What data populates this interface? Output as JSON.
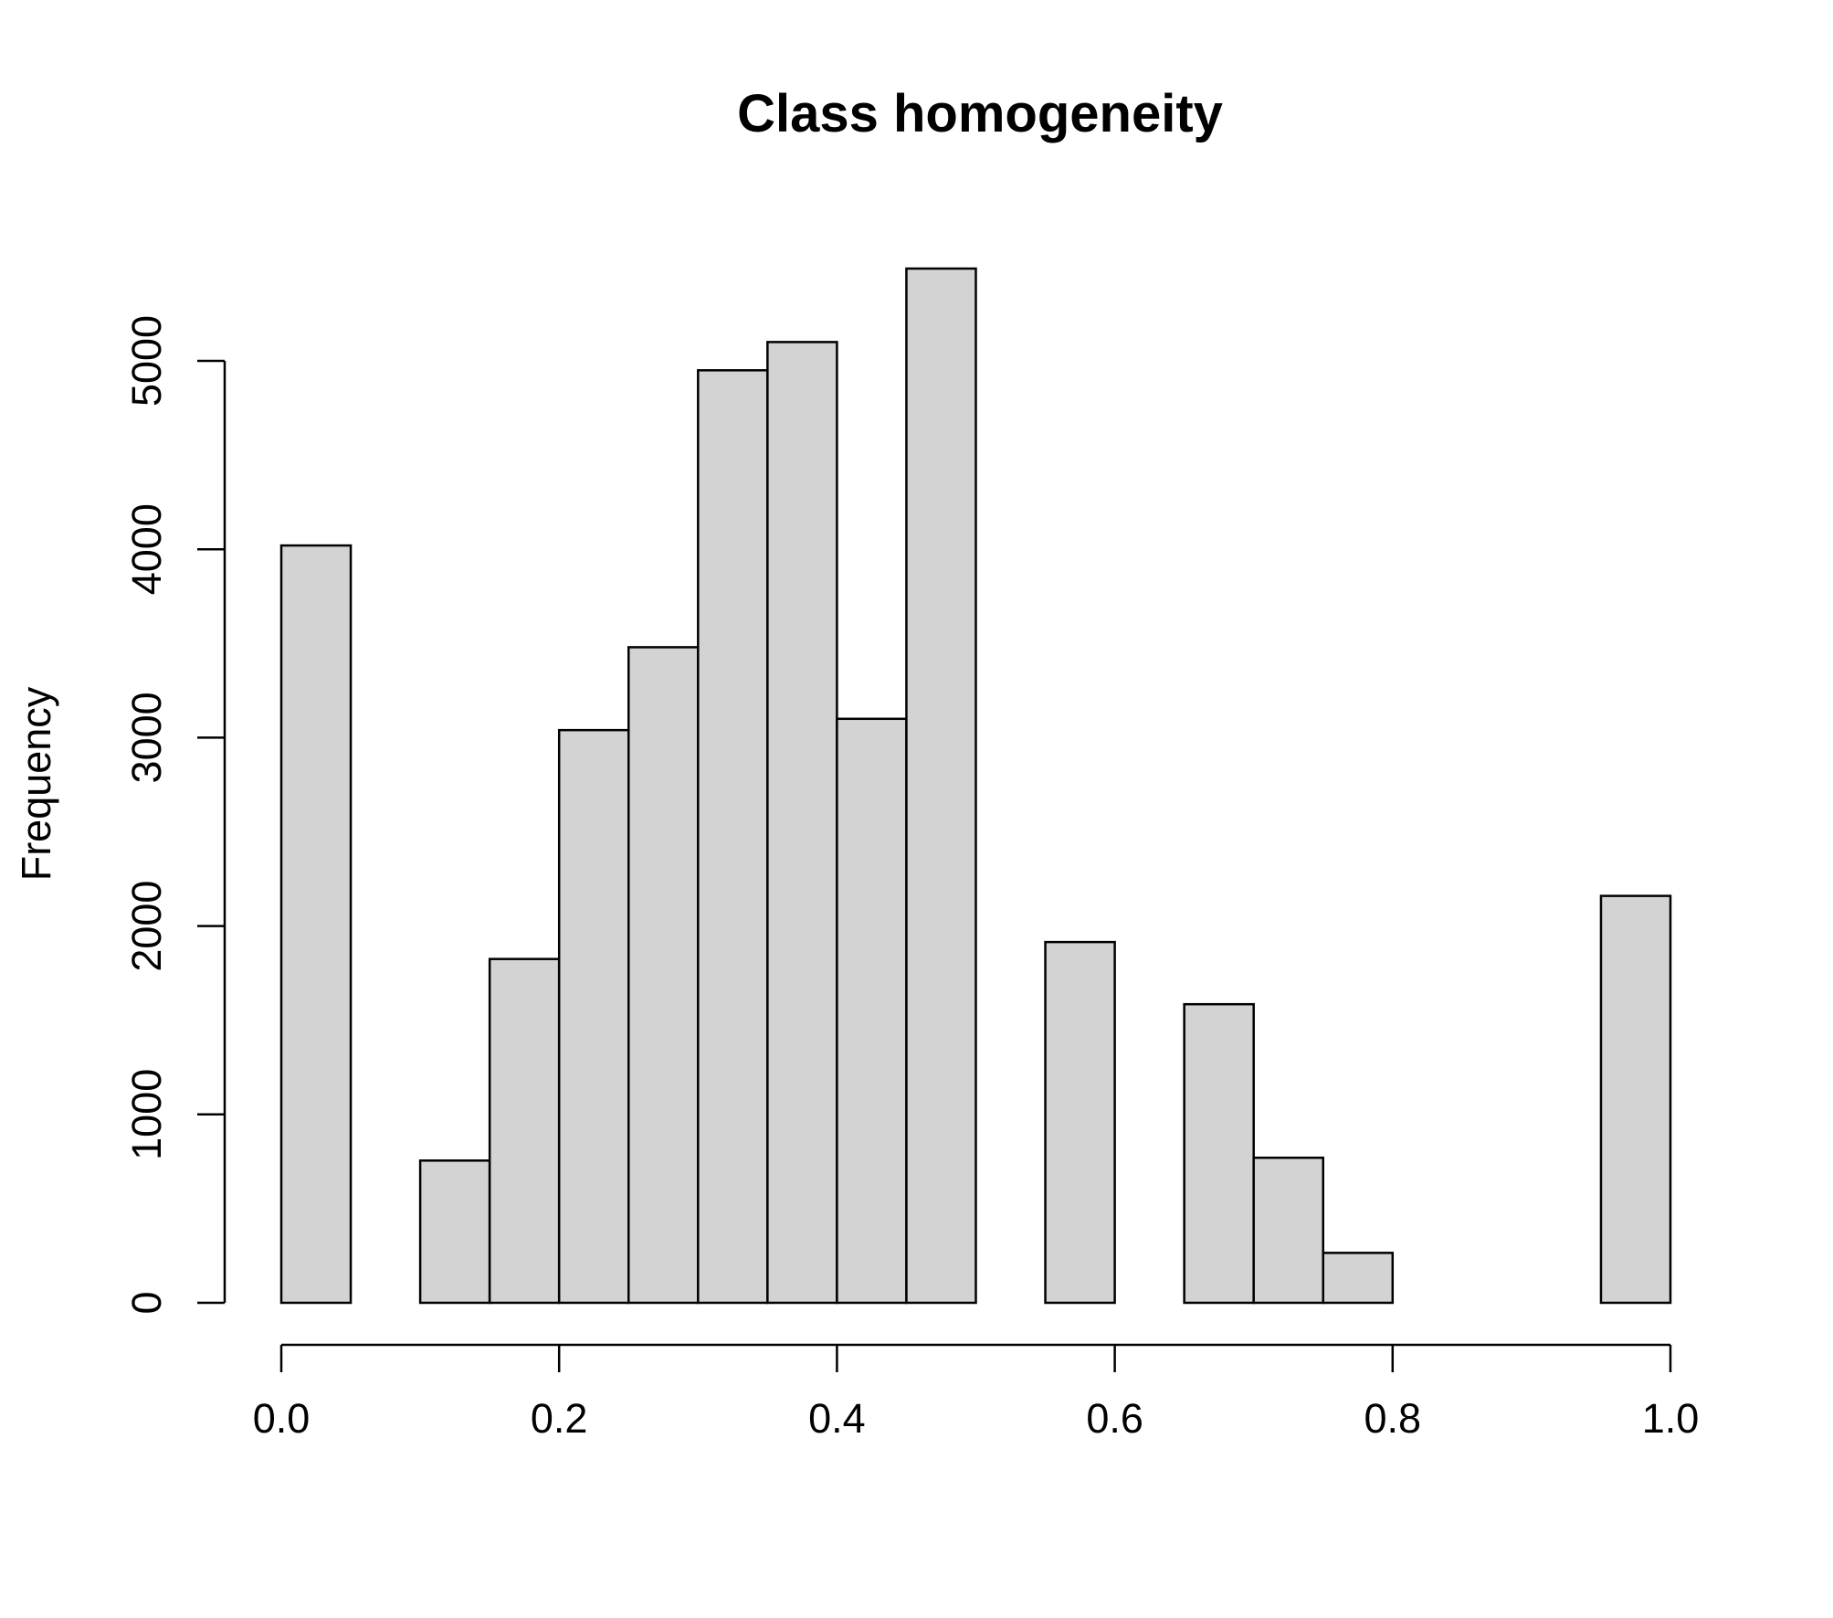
{
  "chart_data": {
    "type": "bar",
    "title": "Class homogeneity",
    "xlabel": "",
    "ylabel": "Frequency",
    "bar_color": "#d3d3d3",
    "edge_color": "#000000",
    "bin_width": 0.05,
    "bins": [
      {
        "start": 0.0,
        "end": 0.05,
        "count": 4020
      },
      {
        "start": 0.05,
        "end": 0.1,
        "count": 0
      },
      {
        "start": 0.1,
        "end": 0.15,
        "count": 755
      },
      {
        "start": 0.15,
        "end": 0.2,
        "count": 1825
      },
      {
        "start": 0.2,
        "end": 0.25,
        "count": 3040
      },
      {
        "start": 0.25,
        "end": 0.3,
        "count": 3480
      },
      {
        "start": 0.3,
        "end": 0.35,
        "count": 4950
      },
      {
        "start": 0.35,
        "end": 0.4,
        "count": 5100
      },
      {
        "start": 0.4,
        "end": 0.45,
        "count": 3100
      },
      {
        "start": 0.45,
        "end": 0.5,
        "count": 5490
      },
      {
        "start": 0.5,
        "end": 0.55,
        "count": 0
      },
      {
        "start": 0.55,
        "end": 0.6,
        "count": 1915
      },
      {
        "start": 0.6,
        "end": 0.65,
        "count": 0
      },
      {
        "start": 0.65,
        "end": 0.7,
        "count": 1585
      },
      {
        "start": 0.7,
        "end": 0.75,
        "count": 770
      },
      {
        "start": 0.75,
        "end": 0.8,
        "count": 265
      },
      {
        "start": 0.8,
        "end": 0.85,
        "count": 0
      },
      {
        "start": 0.85,
        "end": 0.9,
        "count": 0
      },
      {
        "start": 0.9,
        "end": 0.95,
        "count": 0
      },
      {
        "start": 0.95,
        "end": 1.0,
        "count": 2160
      }
    ],
    "xlim": [
      0,
      1
    ],
    "ylim": [
      0,
      5500
    ],
    "xticks": [
      0.0,
      0.2,
      0.4,
      0.6,
      0.8,
      1.0
    ],
    "xtick_labels": [
      "0.0",
      "0.2",
      "0.4",
      "0.6",
      "0.8",
      "1.0"
    ],
    "yticks": [
      0,
      1000,
      2000,
      3000,
      4000,
      5000
    ],
    "ytick_labels": [
      "0",
      "1000",
      "2000",
      "3000",
      "4000",
      "5000"
    ],
    "grid": false,
    "legend": "none"
  }
}
